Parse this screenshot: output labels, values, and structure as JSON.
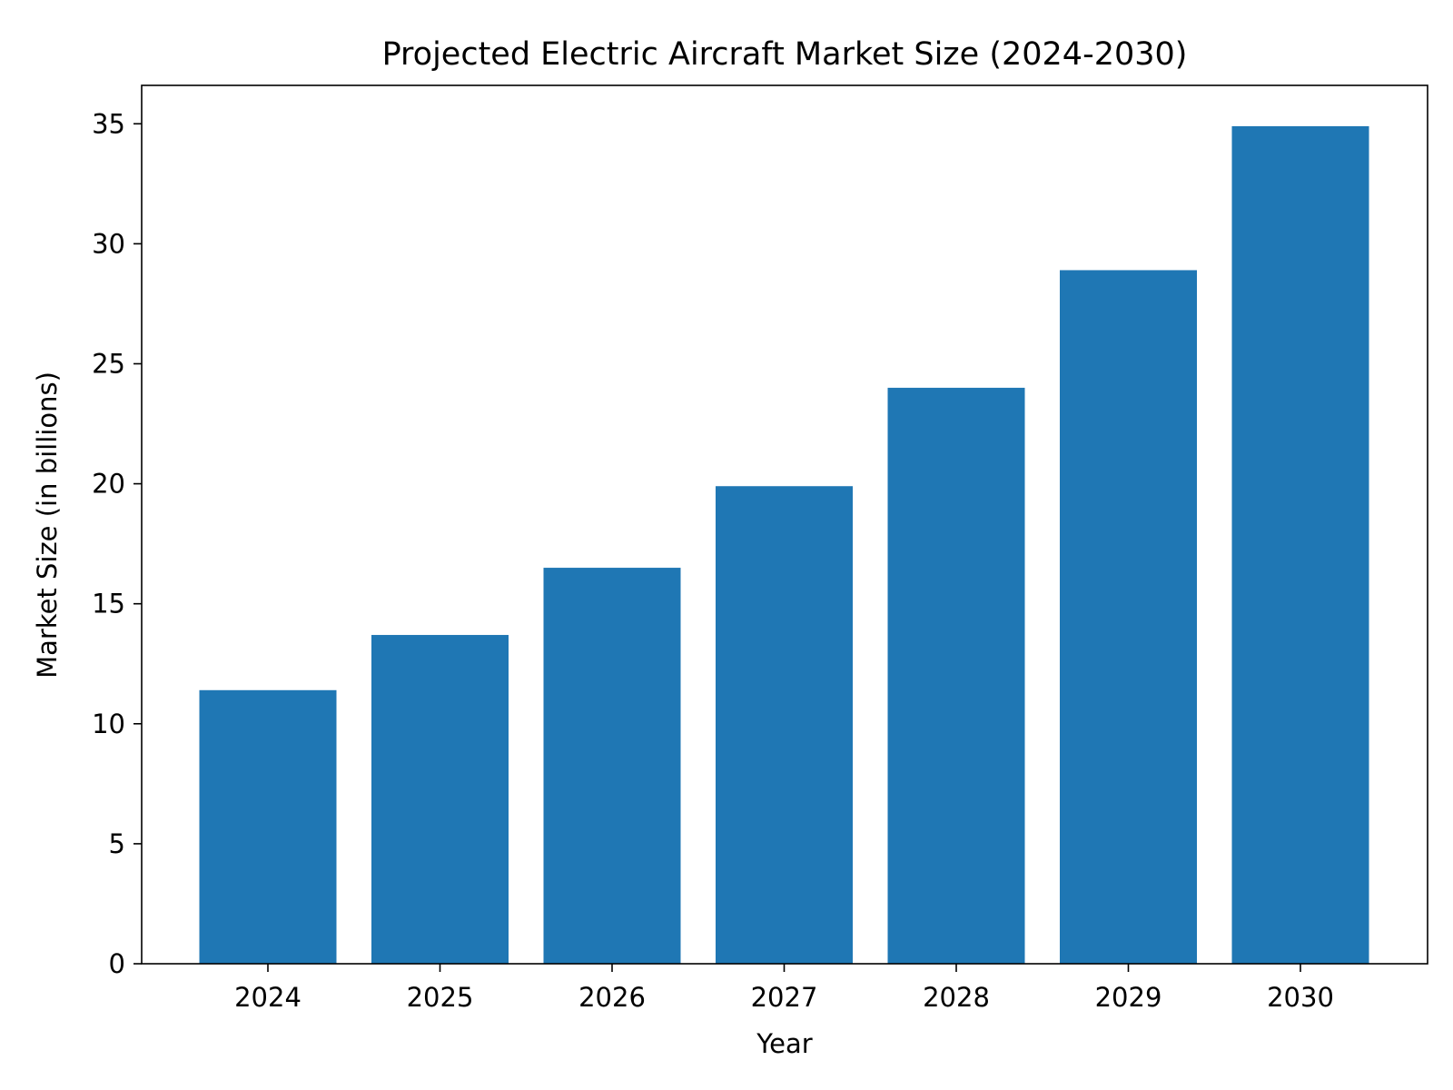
{
  "chart_data": {
    "type": "bar",
    "title": "Projected Electric Aircraft Market Size (2024-2030)",
    "xlabel": "Year",
    "ylabel": "Market Size (in billions)",
    "categories": [
      "2024",
      "2025",
      "2026",
      "2027",
      "2028",
      "2029",
      "2030"
    ],
    "values": [
      11.4,
      13.7,
      16.5,
      19.9,
      24.0,
      28.9,
      34.9
    ],
    "ylim": [
      0,
      36.6
    ],
    "yticks": [
      0,
      5,
      10,
      15,
      20,
      25,
      30,
      35
    ],
    "grid": false,
    "legend": false,
    "bar_color": "#1f77b4",
    "axis_color": "#000000",
    "background_color": "#ffffff"
  }
}
